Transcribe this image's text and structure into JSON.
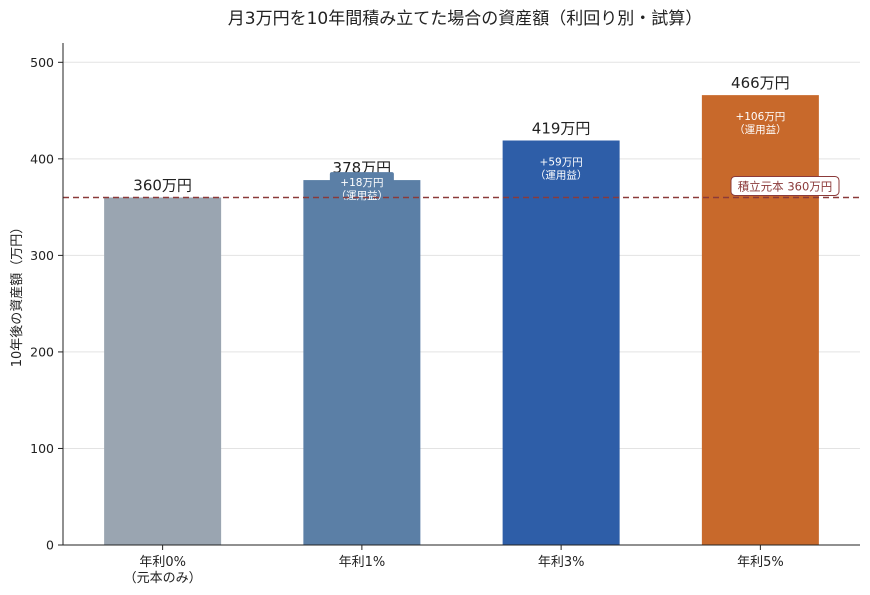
{
  "chart_data": {
    "type": "bar",
    "title": "月3万円を10年間積み立てた場合の資産額（利回り別・試算）",
    "ylabel": "10年後の資産額（万円）",
    "xlabel": "",
    "ylim": [
      0,
      520
    ],
    "yticks": [
      0,
      100,
      200,
      300,
      400,
      500
    ],
    "grid": "horizontal",
    "categories": [
      "年利0%\n（元本のみ）",
      "年利1%",
      "年利3%",
      "年利5%"
    ],
    "values": [
      360,
      378,
      419,
      466
    ],
    "colors": [
      "#9aa5b1",
      "#5b7fa6",
      "#2e5ea8",
      "#c8692b"
    ],
    "value_labels": [
      "360万円",
      "378万円",
      "419万円",
      "466万円"
    ],
    "gain_labels": [
      null,
      "+18万円\n（運用益）",
      "+59万円\n（運用益）",
      "+106万円\n（運用益）"
    ],
    "reference_line": {
      "value": 360,
      "label": "積立元本 360万円",
      "color": "#8b3a3a",
      "style": "dashed"
    }
  }
}
